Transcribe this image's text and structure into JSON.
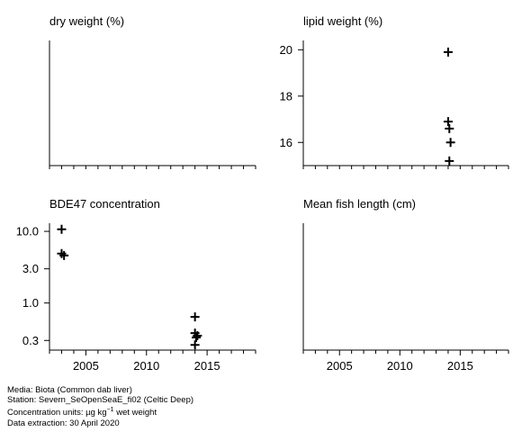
{
  "chart_data": [
    {
      "type": "scatter",
      "title": "dry weight (%)",
      "xlim": [
        2002,
        2019
      ],
      "x_ticks": [],
      "y_ticks": [],
      "points": []
    },
    {
      "type": "scatter",
      "title": "lipid weight (%)",
      "xlim": [
        2002,
        2019
      ],
      "ylim": [
        15,
        20.4
      ],
      "x_ticks": [],
      "y_ticks": [
        16,
        18,
        20
      ],
      "points": [
        {
          "x": 2014,
          "y": 19.9
        },
        {
          "x": 2014,
          "y": 16.9
        },
        {
          "x": 2014.1,
          "y": 16.6
        },
        {
          "x": 2014.2,
          "y": 16.0
        },
        {
          "x": 2014.1,
          "y": 15.2
        }
      ]
    },
    {
      "type": "scatter",
      "title": "BDE47 concentration",
      "scale": "log",
      "xlim": [
        2002,
        2019
      ],
      "ylim": [
        0.22,
        13
      ],
      "x_ticks": [
        2005,
        2010,
        2015
      ],
      "y_ticks": [
        0.3,
        1.0,
        3.0,
        10.0
      ],
      "y_tick_labels": [
        "0.3",
        "1.0",
        "3.0",
        "10.0"
      ],
      "points": [
        {
          "x": 2003,
          "y": 10.7
        },
        {
          "x": 2003,
          "y": 4.9
        },
        {
          "x": 2003.2,
          "y": 4.6
        },
        {
          "x": 2014,
          "y": 0.64
        },
        {
          "x": 2014,
          "y": 0.38
        },
        {
          "x": 2014.2,
          "y": 0.35
        },
        {
          "x": 2014.1,
          "y": 0.33
        },
        {
          "x": 2014,
          "y": 0.26
        }
      ]
    },
    {
      "type": "scatter",
      "title": "Mean fish length (cm)",
      "xlim": [
        2002,
        2019
      ],
      "x_ticks": [
        2005,
        2010,
        2015
      ],
      "y_ticks": [],
      "points": []
    }
  ],
  "footer": {
    "media": "Media: Biota (Common dab liver)",
    "station": "Station: Severn_SeOpenSeaE_fi02 (Celtic Deep)",
    "units_prefix": "Concentration units:  µg kg",
    "units_sup": "−1",
    "units_suffix": " wet weight",
    "extraction": "Data extraction: 30 April 2020"
  }
}
